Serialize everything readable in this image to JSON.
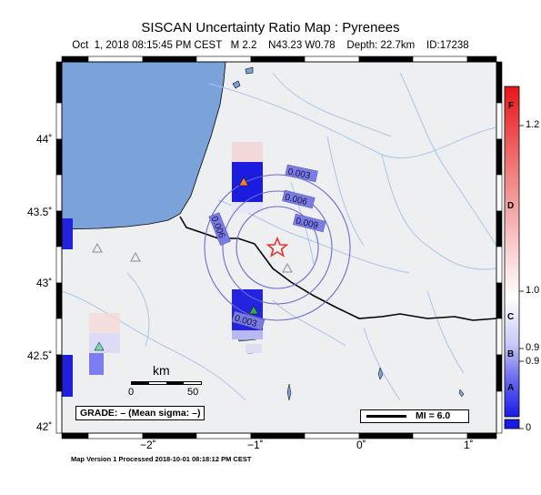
{
  "header": {
    "title": "SISCAN Uncertainty Ratio Map : Pyrenees",
    "subtitle": "Oct  1, 2018 08:15:45 PM CEST   M 2.2    N43.23 W0.78    Depth: 22.7km    ID:17238"
  },
  "axes": {
    "lat_labels": [
      "44˚",
      "43.5˚",
      "43˚",
      "42.5˚",
      "42˚"
    ],
    "lon_labels": [
      "−2˚",
      "−1˚",
      "0˚",
      "1˚"
    ]
  },
  "contours": {
    "labels": [
      "0.003",
      "0.006",
      "0.009",
      "0.006",
      "0.003"
    ]
  },
  "scale_bar": {
    "title": "km",
    "start": "0",
    "end": "50"
  },
  "grade_box": {
    "text": "GRADE: – (Mean sigma: –)"
  },
  "mmi_box": {
    "text": "MI = 6.0"
  },
  "colorbar": {
    "letters": [
      "F",
      "D",
      "C",
      "B",
      "A"
    ],
    "values": [
      "1.2",
      "1.0",
      "0.9",
      "0.9",
      "0"
    ]
  },
  "footer": {
    "text": "Map Version 1 Processed 2018-10-01 08:18:12 PM CEST"
  },
  "colors": {
    "ocean": "#7ba3d9",
    "land": "#eeeff0",
    "border": "#000000",
    "river": "#a9c6e8",
    "contour": "#6b6bd8",
    "epicenter": "#e8332b",
    "station_gray": "#8a8a8a"
  },
  "stations": [
    {
      "color": "#f07f2f",
      "kind": "triangle"
    },
    {
      "color": "#3aa64a",
      "kind": "triangle"
    },
    {
      "color": "#71dbb3",
      "kind": "triangle"
    },
    {
      "color": "#8a8a8a",
      "kind": "triangle"
    },
    {
      "color": "#8a8a8a",
      "kind": "triangle"
    },
    {
      "color": "#8a8a8a",
      "kind": "triangle"
    }
  ]
}
